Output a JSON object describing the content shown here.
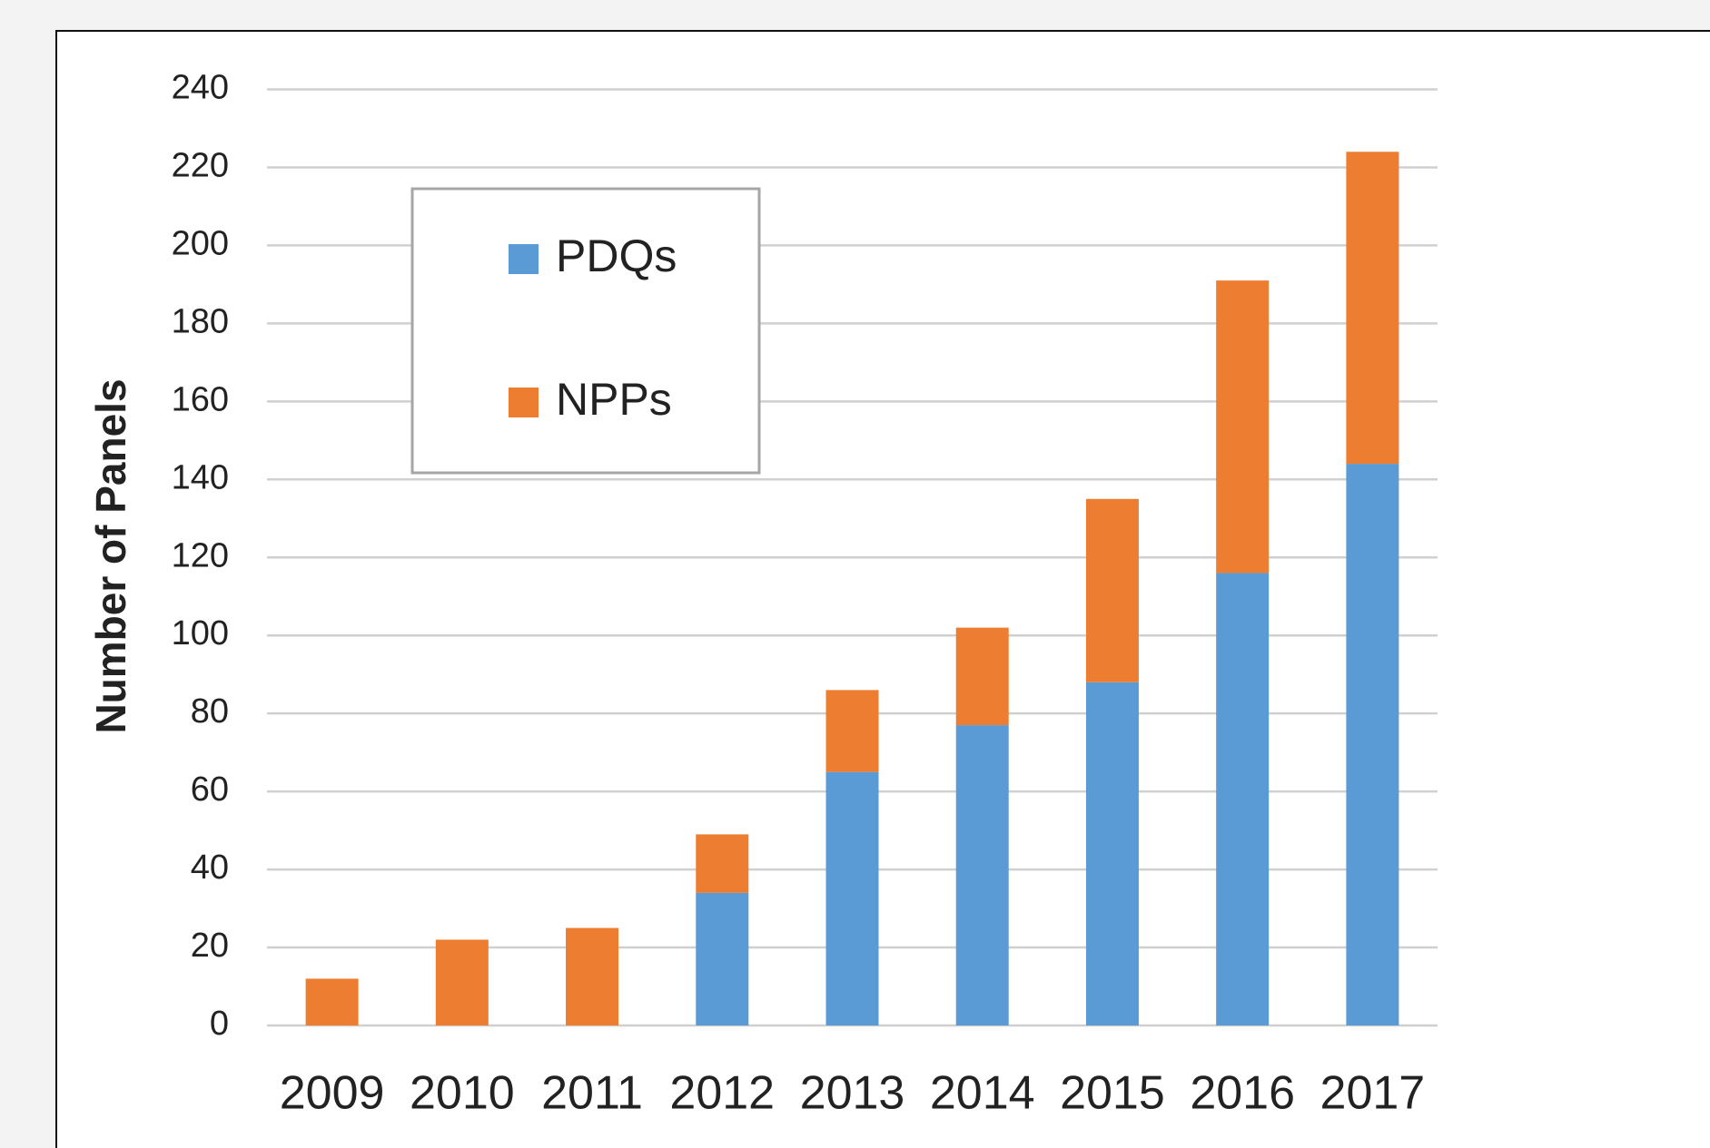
{
  "chart_data": {
    "type": "stacked_bar",
    "y_label": "Number of Panels",
    "categories": [
      "2009",
      "2010",
      "2011",
      "2012",
      "2013",
      "2014",
      "2015",
      "2016",
      "2017"
    ],
    "series": [
      {
        "name": "PDQs",
        "color": "#5b9bd5",
        "values": [
          0,
          0,
          0,
          34,
          65,
          77,
          88,
          116,
          144
        ]
      },
      {
        "name": "NPPs",
        "color": "#ed7d31",
        "values": [
          12,
          22,
          25,
          15,
          21,
          25,
          47,
          75,
          80
        ]
      }
    ],
    "ylim": [
      0,
      240
    ],
    "yticks": [
      0,
      20,
      40,
      60,
      80,
      100,
      120,
      140,
      160,
      180,
      200,
      220,
      240
    ],
    "grid": true,
    "legend": "upper-left"
  }
}
